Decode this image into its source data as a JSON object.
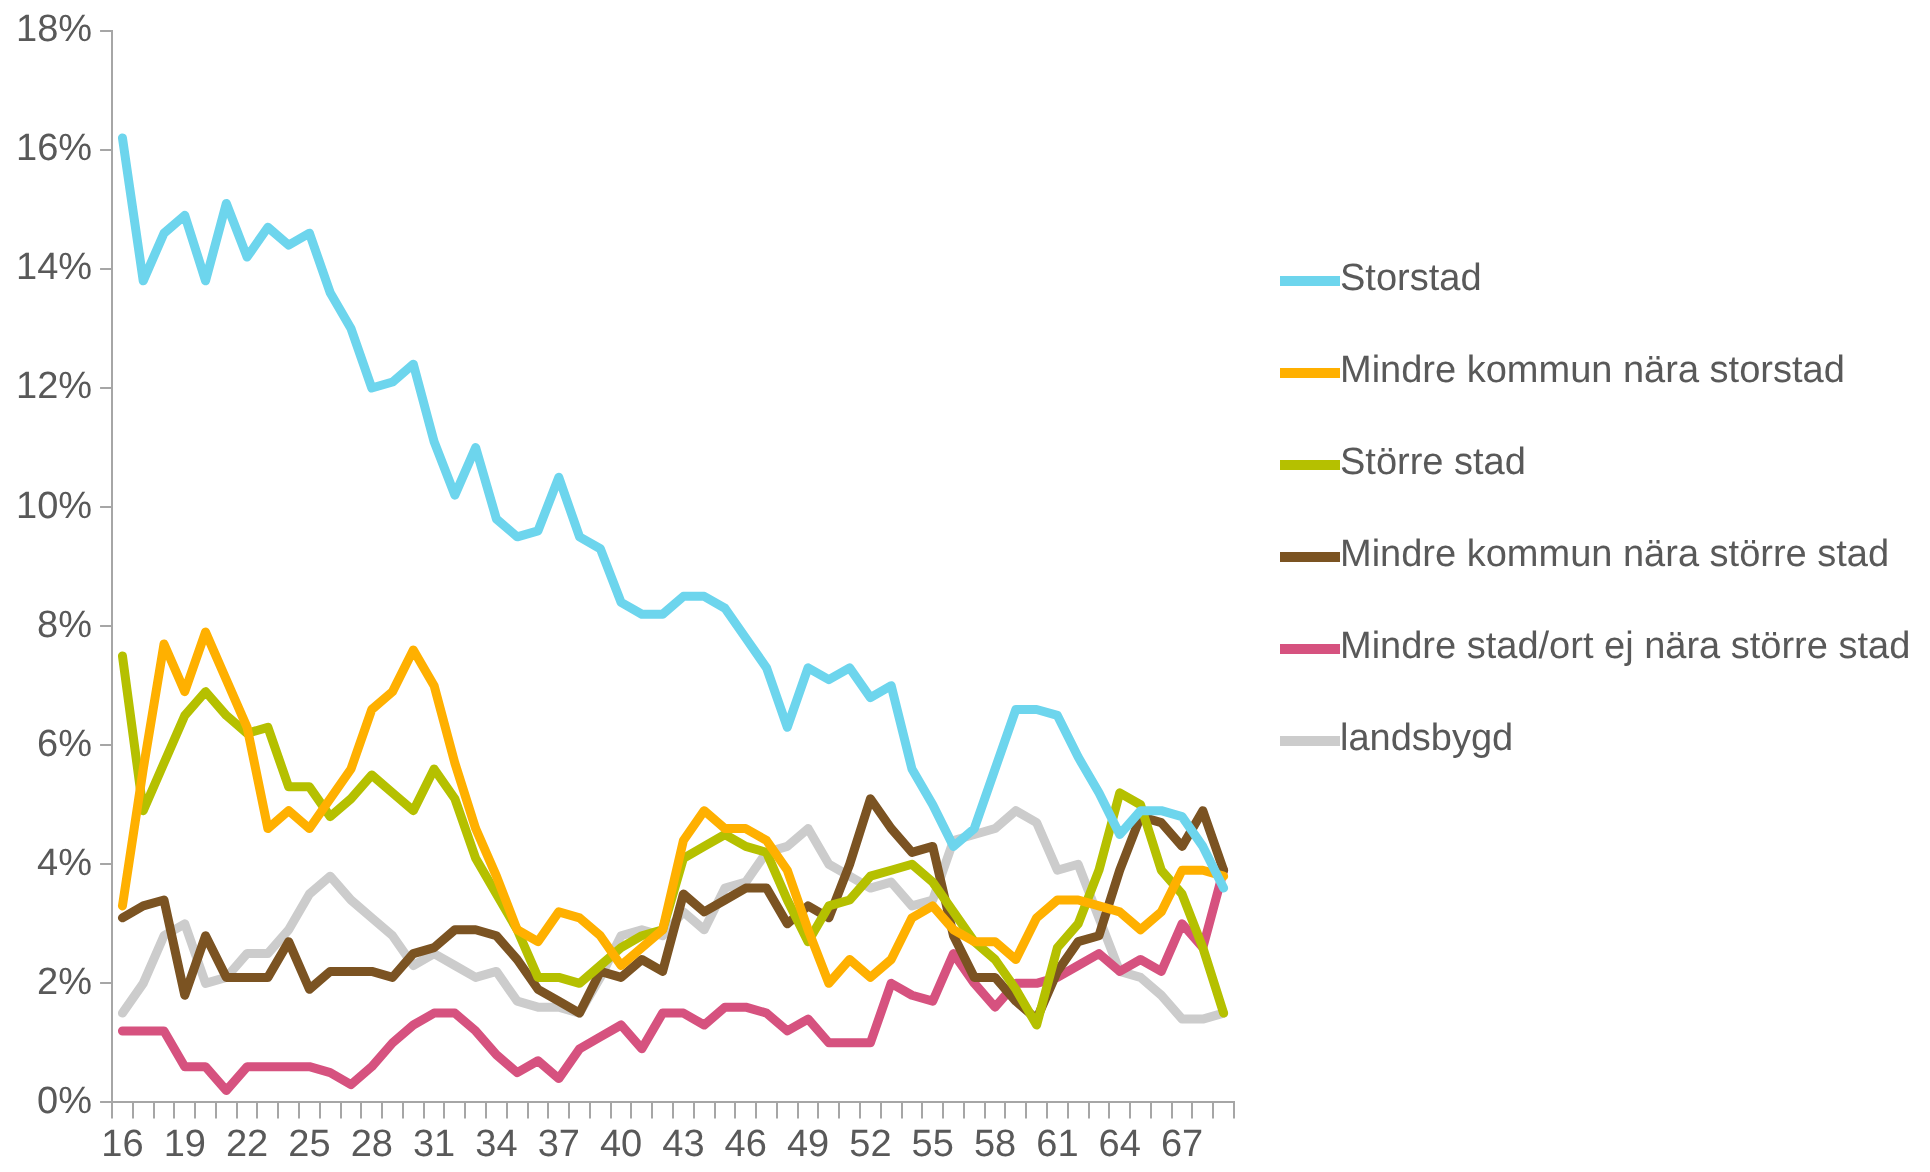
{
  "chart_data": {
    "type": "line",
    "categories": [
      "16",
      null,
      null,
      "19",
      null,
      null,
      "22",
      null,
      null,
      "25",
      null,
      null,
      "28",
      null,
      null,
      "31",
      null,
      null,
      "34",
      null,
      null,
      "37",
      null,
      null,
      "40",
      null,
      null,
      "43",
      null,
      null,
      "46",
      null,
      null,
      "49",
      null,
      null,
      "52",
      null,
      null,
      "55",
      null,
      null,
      "58",
      null,
      null,
      "61",
      null,
      null,
      "64",
      null,
      null,
      "67",
      null,
      null
    ],
    "series": [
      {
        "name": "Storstad",
        "color": "#6dd5ed",
        "values": [
          16.2,
          13.8,
          14.6,
          14.9,
          13.8,
          15.1,
          14.2,
          14.7,
          14.4,
          14.6,
          13.6,
          13.0,
          12.0,
          12.1,
          12.4,
          11.1,
          10.2,
          11.0,
          9.8,
          9.5,
          9.6,
          10.5,
          9.5,
          9.3,
          8.4,
          8.2,
          8.2,
          8.5,
          8.5,
          8.3,
          7.8,
          7.3,
          6.3,
          7.3,
          7.1,
          7.3,
          6.8,
          7.0,
          5.6,
          5.0,
          4.3,
          4.6,
          5.6,
          6.6,
          6.6,
          6.5,
          5.8,
          5.2,
          4.5,
          4.9,
          4.9,
          4.8,
          4.3,
          3.6
        ]
      },
      {
        "name": "Mindre kommun nära storstad",
        "color": "#ffb000",
        "values": [
          3.3,
          5.6,
          7.7,
          6.9,
          7.9,
          7.1,
          6.3,
          4.6,
          4.9,
          4.6,
          5.1,
          5.6,
          6.6,
          6.9,
          7.6,
          7.0,
          5.7,
          4.6,
          3.8,
          2.9,
          2.7,
          3.2,
          3.1,
          2.8,
          2.3,
          2.6,
          2.9,
          4.4,
          4.9,
          4.6,
          4.6,
          4.4,
          3.9,
          2.9,
          2.0,
          2.4,
          2.1,
          2.4,
          3.1,
          3.3,
          2.9,
          2.7,
          2.7,
          2.4,
          3.1,
          3.4,
          3.4,
          3.3,
          3.2,
          2.9,
          3.2,
          3.9,
          3.9,
          3.8
        ]
      },
      {
        "name": "Större stad",
        "color": "#b5c000",
        "values": [
          7.5,
          4.9,
          5.7,
          6.5,
          6.9,
          6.5,
          6.2,
          6.3,
          5.3,
          5.3,
          4.8,
          5.1,
          5.5,
          5.2,
          4.9,
          5.6,
          5.1,
          4.1,
          3.5,
          2.9,
          2.1,
          2.1,
          2.0,
          2.3,
          2.6,
          2.8,
          2.9,
          4.1,
          4.3,
          4.5,
          4.3,
          4.2,
          3.4,
          2.7,
          3.3,
          3.4,
          3.8,
          3.9,
          4.0,
          3.7,
          3.2,
          2.7,
          2.4,
          1.9,
          1.3,
          2.6,
          3.0,
          3.9,
          5.2,
          5.0,
          3.9,
          3.5,
          2.6,
          1.5
        ]
      },
      {
        "name": "Mindre kommun nära större stad",
        "color": "#7b5322",
        "values": [
          3.1,
          3.3,
          3.4,
          1.8,
          2.8,
          2.1,
          2.1,
          2.1,
          2.7,
          1.9,
          2.2,
          2.2,
          2.2,
          2.1,
          2.5,
          2.6,
          2.9,
          2.9,
          2.8,
          2.4,
          1.9,
          1.7,
          1.5,
          2.2,
          2.1,
          2.4,
          2.2,
          3.5,
          3.2,
          3.4,
          3.6,
          3.6,
          3.0,
          3.3,
          3.1,
          4.0,
          5.1,
          4.6,
          4.2,
          4.3,
          2.8,
          2.1,
          2.1,
          1.7,
          1.4,
          2.2,
          2.7,
          2.8,
          3.9,
          4.8,
          4.7,
          4.3,
          4.9,
          3.9
        ]
      },
      {
        "name": "Mindre stad/ort ej nära större stad",
        "color": "#d6527f",
        "values": [
          1.2,
          1.2,
          1.2,
          0.6,
          0.6,
          0.2,
          0.6,
          0.6,
          0.6,
          0.6,
          0.5,
          0.3,
          0.6,
          1.0,
          1.3,
          1.5,
          1.5,
          1.2,
          0.8,
          0.5,
          0.7,
          0.4,
          0.9,
          1.1,
          1.3,
          0.9,
          1.5,
          1.5,
          1.3,
          1.6,
          1.6,
          1.5,
          1.2,
          1.4,
          1.0,
          1.0,
          1.0,
          2.0,
          1.8,
          1.7,
          2.5,
          2.0,
          1.6,
          2.0,
          2.0,
          2.1,
          2.3,
          2.5,
          2.2,
          2.4,
          2.2,
          3.0,
          2.6,
          3.9
        ]
      },
      {
        "name": "landsbygd",
        "color": "#cccccc",
        "values": [
          1.5,
          2.0,
          2.8,
          3.0,
          2.0,
          2.1,
          2.5,
          2.5,
          2.9,
          3.5,
          3.8,
          3.4,
          3.1,
          2.8,
          2.3,
          2.5,
          2.3,
          2.1,
          2.2,
          1.7,
          1.6,
          1.6,
          1.5,
          2.1,
          2.8,
          2.9,
          2.8,
          3.2,
          2.9,
          3.6,
          3.7,
          4.2,
          4.3,
          4.6,
          4.0,
          3.8,
          3.6,
          3.7,
          3.3,
          3.4,
          4.4,
          4.5,
          4.6,
          4.9,
          4.7,
          3.9,
          4.0,
          3.1,
          2.2,
          2.1,
          1.8,
          1.4,
          1.4,
          1.5
        ]
      }
    ],
    "ylim": [
      0,
      18
    ],
    "yticks": [
      {
        "value": 0,
        "label": "0%"
      },
      {
        "value": 2,
        "label": "2%"
      },
      {
        "value": 4,
        "label": "4%"
      },
      {
        "value": 6,
        "label": "6%"
      },
      {
        "value": 8,
        "label": "8%"
      },
      {
        "value": 10,
        "label": "10%"
      },
      {
        "value": 12,
        "label": "12%"
      },
      {
        "value": 14,
        "label": "14%"
      },
      {
        "value": 16,
        "label": "16%"
      },
      {
        "value": 18,
        "label": "18%"
      }
    ],
    "grid": false,
    "legend": "right",
    "marker": "none",
    "line_style": "solid"
  }
}
